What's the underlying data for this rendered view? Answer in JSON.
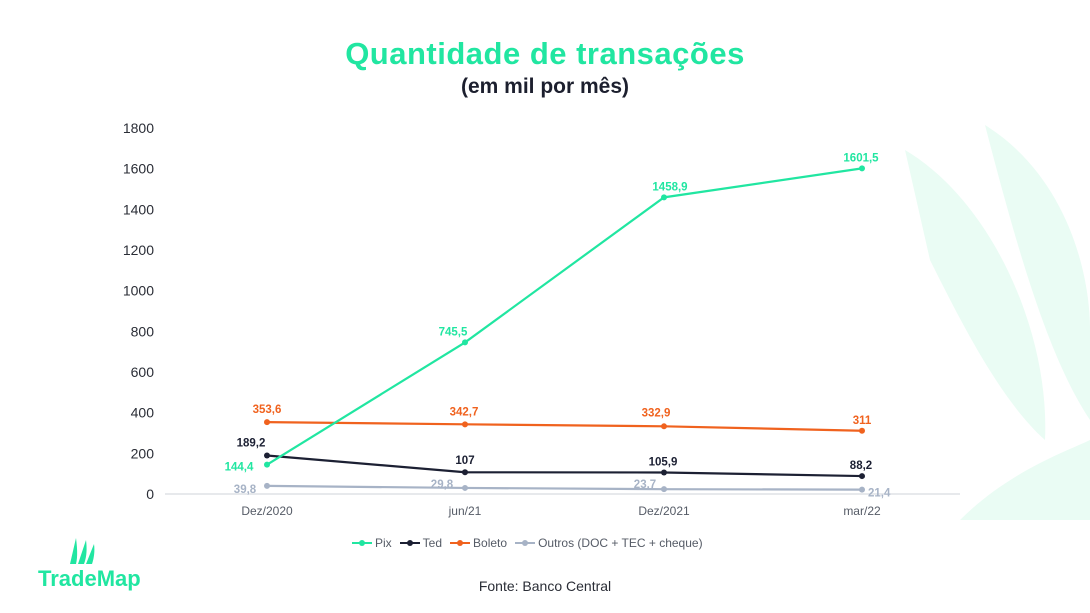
{
  "header": {
    "title": "Quantidade de transações",
    "subtitle": "(em mil por mês)"
  },
  "colors": {
    "pix": "#21e6a1",
    "ted": "#1c2033",
    "boleto": "#f0621e",
    "outros": "#a7b3c6",
    "brand_green": "#21e6a1",
    "axis_text": "#2a2d36"
  },
  "chart_data": {
    "type": "line",
    "title": "Quantidade de transações",
    "subtitle": "(em mil por mês)",
    "xlabel": "",
    "ylabel": "",
    "categories": [
      "Dez/2020",
      "jun/21",
      "Dez/2021",
      "mar/22"
    ],
    "ylim": [
      0,
      1800
    ],
    "yticks": [
      0,
      200,
      400,
      600,
      800,
      1000,
      1200,
      1400,
      1600,
      1800
    ],
    "grid": false,
    "legend_position": "bottom",
    "series": [
      {
        "key": "pix",
        "name": "Pix",
        "values": [
          144.4,
          745.5,
          1458.9,
          1601.5
        ],
        "labels": [
          "144,4",
          "745,5",
          "1458,9",
          "1601,5"
        ]
      },
      {
        "key": "ted",
        "name": "Ted",
        "values": [
          189.2,
          107,
          105.9,
          88.2
        ],
        "labels": [
          "189,2",
          "107",
          "105,9",
          "88,2"
        ]
      },
      {
        "key": "boleto",
        "name": "Boleto",
        "values": [
          353.6,
          342.7,
          332.9,
          311
        ],
        "labels": [
          "353,6",
          "342,7",
          "332,9",
          "311"
        ]
      },
      {
        "key": "outros",
        "name": "Outros (DOC + TEC + cheque)",
        "values": [
          39.8,
          29.8,
          23.7,
          21.4
        ],
        "labels": [
          "39,8",
          "29,8",
          "23,7",
          "21,4"
        ]
      }
    ]
  },
  "source": "Fonte: Banco Central",
  "logo": {
    "text": "TradeMap",
    "icon": "trademap-sail-icon"
  }
}
